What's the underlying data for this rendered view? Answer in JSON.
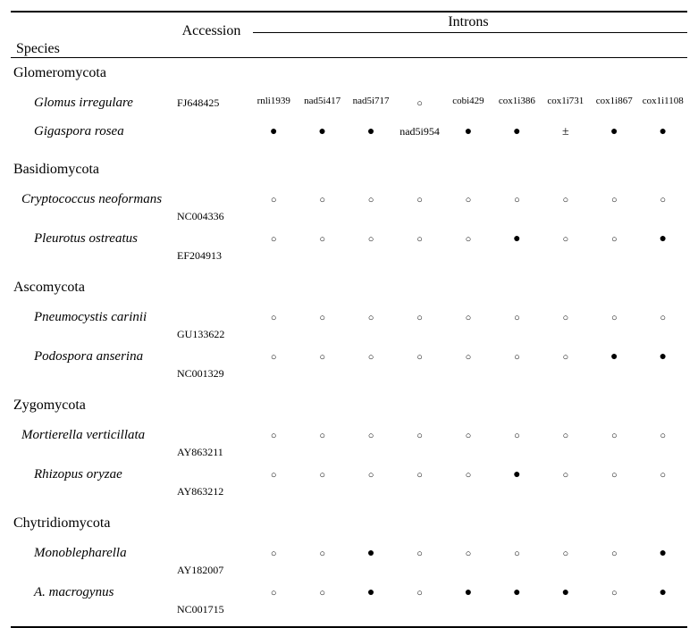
{
  "headers": {
    "species": "Species",
    "accession": "Accession",
    "introns": "Introns"
  },
  "intron_headers": [
    "rnli1939",
    "nad5i417",
    "nad5i717",
    "",
    "cobi429",
    "cox1i386",
    "cox1i731",
    "cox1i867",
    "cox1i1108"
  ],
  "symbols": {
    "filled": "●",
    "open": "○",
    "pm": "±"
  },
  "mid_label": "nad5i954",
  "groups": [
    {
      "name": "Glomeromycota",
      "rows": [
        {
          "species": "Glomus irregulare",
          "accession": "FJ648425",
          "cells": [
            "h",
            "h",
            "h",
            "open",
            "h",
            "h",
            "h",
            "h",
            "h"
          ],
          "indent": "normal",
          "acc_pos": "center"
        },
        {
          "species": "Gigaspora rosea",
          "accession": "",
          "cells": [
            "filled",
            "filled",
            "filled",
            "mid",
            "filled",
            "filled",
            "pm",
            "filled",
            "filled"
          ],
          "indent": "normal"
        }
      ]
    },
    {
      "name": "Basidiomycota",
      "rows": [
        {
          "species": "Cryptococcus neoformans",
          "accession": "NC004336",
          "cells": [
            "open",
            "open",
            "open",
            "open",
            "open",
            "open",
            "open",
            "open",
            "open"
          ],
          "indent": "tight",
          "acc_pos": "below"
        },
        {
          "species": "Pleurotus ostreatus",
          "accession": "EF204913",
          "cells": [
            "open",
            "open",
            "open",
            "open",
            "open",
            "filled",
            "open",
            "open",
            "filled"
          ],
          "indent": "normal",
          "acc_pos": "below"
        }
      ]
    },
    {
      "name": "Ascomycota",
      "rows": [
        {
          "species": "Pneumocystis carinii",
          "accession": "GU133622",
          "cells": [
            "open",
            "open",
            "open",
            "open",
            "open",
            "open",
            "open",
            "open",
            "open"
          ],
          "indent": "normal",
          "acc_pos": "below"
        },
        {
          "species": "Podospora anserina",
          "accession": "NC001329",
          "cells": [
            "open",
            "open",
            "open",
            "open",
            "open",
            "open",
            "open",
            "filled",
            "filled"
          ],
          "indent": "normal",
          "acc_pos": "below"
        }
      ]
    },
    {
      "name": "Zygomycota",
      "rows": [
        {
          "species": "Mortierella verticillata",
          "accession": "AY863211",
          "cells": [
            "open",
            "open",
            "open",
            "open",
            "open",
            "open",
            "open",
            "open",
            "open"
          ],
          "indent": "tight",
          "acc_pos": "below"
        },
        {
          "species": "Rhizopus oryzae",
          "accession": "AY863212",
          "cells": [
            "open",
            "open",
            "open",
            "open",
            "open",
            "filled",
            "open",
            "open",
            "open"
          ],
          "indent": "normal",
          "acc_pos": "below"
        }
      ]
    },
    {
      "name": "Chytridiomycota",
      "rows": [
        {
          "species": "Monoblepharella",
          "accession": "AY182007",
          "cells": [
            "open",
            "open",
            "filled",
            "open",
            "open",
            "open",
            "open",
            "open",
            "filled"
          ],
          "indent": "normal",
          "acc_pos": "below"
        },
        {
          "species": "A. macrogynus",
          "accession": "NC001715",
          "cells": [
            "open",
            "open",
            "filled",
            "open",
            "filled",
            "filled",
            "filled",
            "open",
            "filled"
          ],
          "indent": "normal",
          "acc_pos": "below"
        }
      ]
    }
  ]
}
